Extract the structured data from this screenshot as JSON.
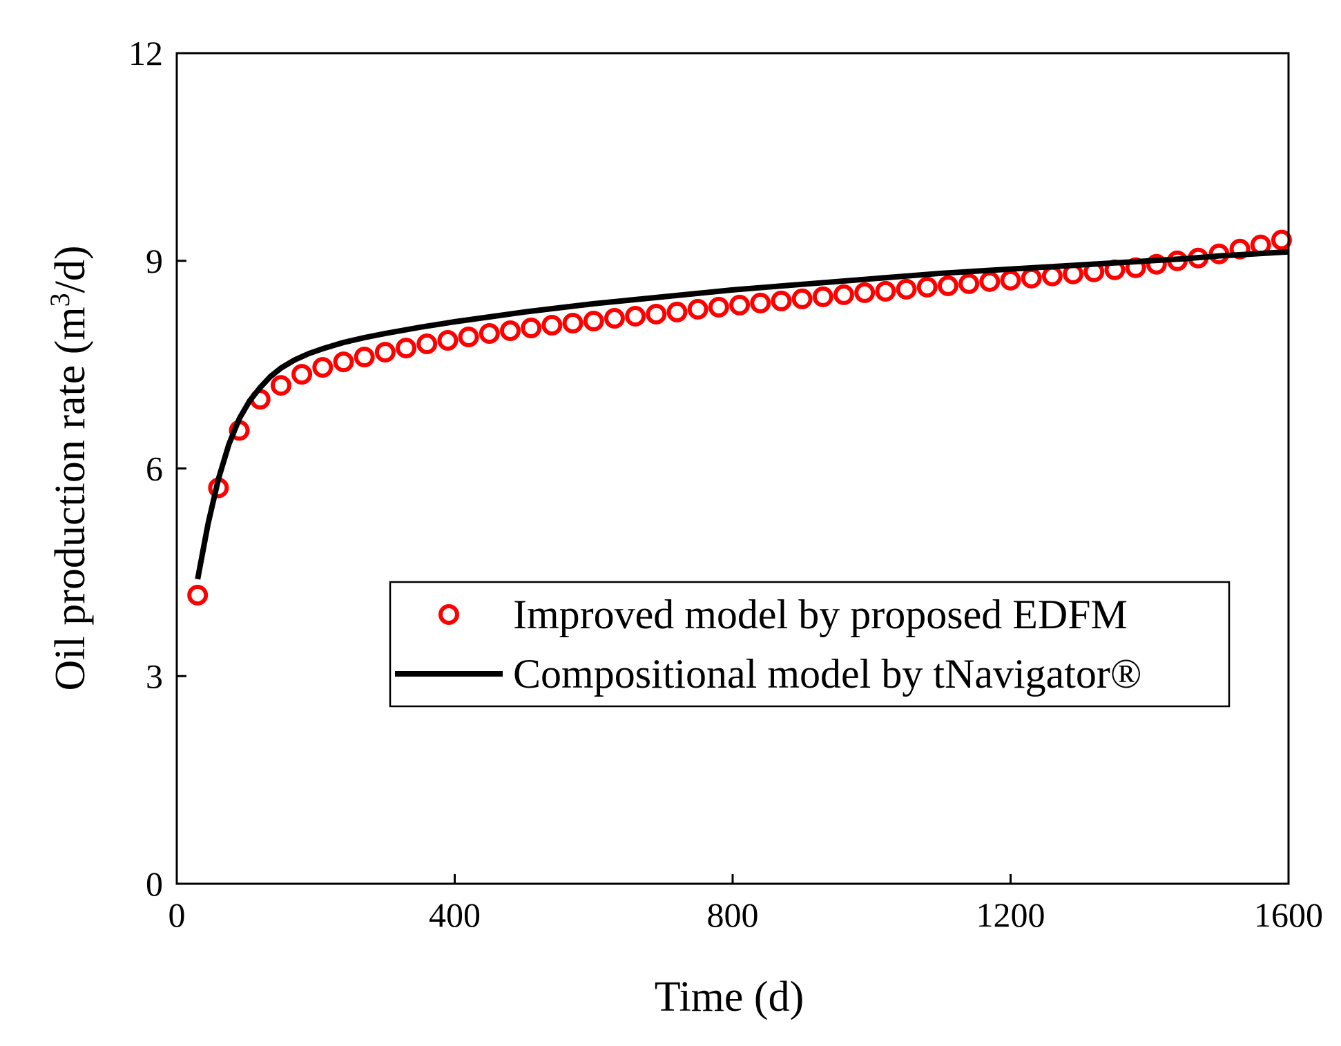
{
  "chart_data": {
    "type": "line",
    "title": "",
    "xlabel": "Time (d)",
    "ylabel_main": "Oil production rate (m",
    "ylabel_sup": "3",
    "ylabel_tail": "/d)",
    "xlim": [
      0,
      1600
    ],
    "ylim": [
      0,
      12
    ],
    "xticks": [
      0,
      400,
      800,
      1200,
      1600
    ],
    "xtick_labels": [
      "0",
      "400",
      "800",
      "1200",
      "1600"
    ],
    "yticks": [
      0,
      3,
      6,
      9,
      12
    ],
    "ytick_labels": [
      "0",
      "3",
      "6",
      "9",
      "12"
    ],
    "legend_position": "center-right",
    "colors": {
      "points": "#ff0000",
      "line": "#000000",
      "axis": "#000000"
    },
    "series": [
      {
        "name": "Improved model by proposed EDFM",
        "style": "open-circle",
        "x": [
          30,
          60,
          90,
          120,
          150,
          180,
          210,
          240,
          270,
          300,
          330,
          360,
          390,
          420,
          450,
          480,
          510,
          540,
          570,
          600,
          630,
          660,
          690,
          720,
          750,
          780,
          810,
          840,
          870,
          900,
          930,
          960,
          990,
          1020,
          1050,
          1080,
          1110,
          1140,
          1170,
          1200,
          1230,
          1260,
          1290,
          1320,
          1350,
          1380,
          1410,
          1440,
          1470,
          1500,
          1530,
          1560,
          1590
        ],
        "y": [
          4.17,
          5.72,
          6.55,
          7.0,
          7.2,
          7.36,
          7.46,
          7.54,
          7.61,
          7.68,
          7.74,
          7.8,
          7.85,
          7.9,
          7.95,
          7.99,
          8.03,
          8.07,
          8.1,
          8.13,
          8.17,
          8.2,
          8.23,
          8.26,
          8.3,
          8.33,
          8.36,
          8.39,
          8.42,
          8.45,
          8.48,
          8.51,
          8.54,
          8.56,
          8.59,
          8.62,
          8.64,
          8.67,
          8.7,
          8.72,
          8.75,
          8.78,
          8.81,
          8.84,
          8.87,
          8.9,
          8.95,
          9.0,
          9.04,
          9.1,
          9.17,
          9.23,
          9.3
        ]
      },
      {
        "name": "Compositional model by tNavigator®",
        "style": "line",
        "x": [
          30,
          45,
          60,
          75,
          90,
          105,
          120,
          135,
          150,
          170,
          190,
          210,
          240,
          270,
          300,
          350,
          400,
          450,
          500,
          550,
          600,
          650,
          700,
          750,
          800,
          850,
          900,
          950,
          1000,
          1050,
          1100,
          1150,
          1200,
          1250,
          1300,
          1350,
          1400,
          1450,
          1500,
          1550,
          1600
        ],
        "y": [
          4.4,
          5.2,
          5.85,
          6.35,
          6.72,
          6.98,
          7.17,
          7.33,
          7.45,
          7.57,
          7.66,
          7.73,
          7.82,
          7.89,
          7.95,
          8.04,
          8.12,
          8.19,
          8.26,
          8.32,
          8.38,
          8.43,
          8.48,
          8.53,
          8.58,
          8.62,
          8.66,
          8.7,
          8.74,
          8.78,
          8.82,
          8.85,
          8.88,
          8.91,
          8.94,
          8.97,
          9.0,
          9.03,
          9.07,
          9.1,
          9.13
        ]
      }
    ]
  }
}
